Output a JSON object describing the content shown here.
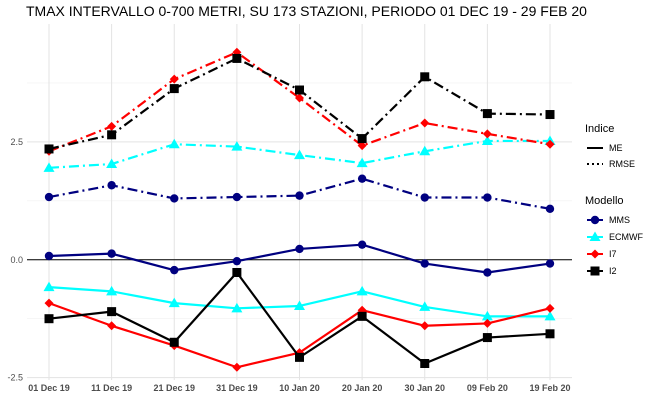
{
  "chart_data": {
    "type": "line",
    "title": "TMAX INTERVALLO 0-700 METRI, SU 173 STAZIONI, PERIODO 01 DEC 19  -  29 FEB 20",
    "xlabel": "",
    "ylabel": "",
    "categories": [
      "01 Dec 19",
      "11 Dec 19",
      "21 Dec 19",
      "31 Dec 19",
      "10 Jan 20",
      "20 Jan 20",
      "30 Jan 20",
      "09 Feb 20",
      "19 Feb 20"
    ],
    "yticks": [
      -2.5,
      0,
      2.5
    ],
    "ytick_labels": [
      "-2.5",
      "0.0",
      "2.5"
    ],
    "ylim": [
      -2.55,
      5.0
    ],
    "reference_line": 0,
    "grid": true,
    "series": [
      {
        "name": "MMS",
        "indice": "ME",
        "color": "#000080",
        "shape": "circle",
        "values": [
          0.08,
          0.13,
          -0.22,
          -0.03,
          0.23,
          0.32,
          -0.08,
          -0.27,
          -0.08
        ]
      },
      {
        "name": "MMS",
        "indice": "RMSE",
        "color": "#000080",
        "shape": "circle",
        "values": [
          1.33,
          1.58,
          1.3,
          1.33,
          1.36,
          1.72,
          1.32,
          1.32,
          1.08
        ]
      },
      {
        "name": "ECMWF",
        "indice": "ME",
        "color": "#00ffff",
        "shape": "triangle",
        "values": [
          -0.58,
          -0.67,
          -0.92,
          -1.03,
          -0.98,
          -0.67,
          -1.0,
          -1.2,
          -1.2
        ]
      },
      {
        "name": "ECMWF",
        "indice": "RMSE",
        "color": "#00ffff",
        "shape": "triangle",
        "values": [
          1.95,
          2.03,
          2.45,
          2.4,
          2.22,
          2.05,
          2.3,
          2.52,
          2.52
        ]
      },
      {
        "name": "I7",
        "indice": "ME",
        "color": "#ff0000",
        "shape": "diamond",
        "values": [
          -0.92,
          -1.4,
          -1.82,
          -2.28,
          -1.97,
          -1.07,
          -1.4,
          -1.35,
          -1.03
        ]
      },
      {
        "name": "I7",
        "indice": "RMSE",
        "color": "#ff0000",
        "shape": "diamond",
        "values": [
          2.3,
          2.83,
          3.83,
          4.4,
          3.43,
          2.42,
          2.9,
          2.67,
          2.45
        ]
      },
      {
        "name": "I2",
        "indice": "ME",
        "color": "#000000",
        "shape": "square",
        "values": [
          -1.25,
          -1.1,
          -1.75,
          -0.27,
          -2.07,
          -1.2,
          -2.2,
          -1.65,
          -1.57
        ]
      },
      {
        "name": "I2",
        "indice": "RMSE",
        "color": "#000000",
        "shape": "square",
        "values": [
          2.35,
          2.65,
          3.63,
          4.27,
          3.6,
          2.57,
          3.88,
          3.1,
          3.08
        ]
      }
    ],
    "legend": {
      "placement": "right",
      "indice_title": "Indice",
      "indice_items": [
        {
          "label": "ME",
          "linestyle": "solid"
        },
        {
          "label": "RMSE",
          "linestyle": "dotdash"
        }
      ],
      "modello_title": "Modello",
      "modello_items": [
        {
          "label": "MMS",
          "color": "#000080",
          "shape": "circle"
        },
        {
          "label": "ECMWF",
          "color": "#00ffff",
          "shape": "triangle"
        },
        {
          "label": "I7",
          "color": "#ff0000",
          "shape": "diamond"
        },
        {
          "label": "I2",
          "color": "#000000",
          "shape": "square"
        }
      ]
    }
  }
}
